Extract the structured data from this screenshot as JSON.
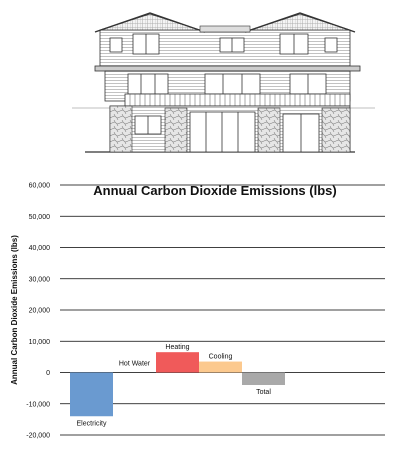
{
  "house_drawing": {
    "description_name": "house-elevation-illustration"
  },
  "chart_data": {
    "type": "bar",
    "title": "Annual Carbon Dioxide Emissions (lbs)",
    "xlabel": "",
    "ylabel": "Annual Carbon Dioxide Emissions (lbs)",
    "ylim": [
      -20000,
      60000
    ],
    "yticks": [
      -20000,
      -10000,
      0,
      10000,
      20000,
      30000,
      40000,
      50000,
      60000
    ],
    "ytick_labels": [
      "-20,000",
      "-10,000",
      "0",
      "10,000",
      "20,000",
      "30,000",
      "40,000",
      "50,000",
      "60,000"
    ],
    "grid": true,
    "categories": [
      "Electricity",
      "Hot Water",
      "Heating",
      "Cooling",
      "Total"
    ],
    "values": [
      -14000,
      0,
      6500,
      3500,
      -4000
    ],
    "colors": [
      "#6a9ad0",
      "#ffffff",
      "#f05a5a",
      "#fcc98e",
      "#a9a9a9"
    ]
  }
}
